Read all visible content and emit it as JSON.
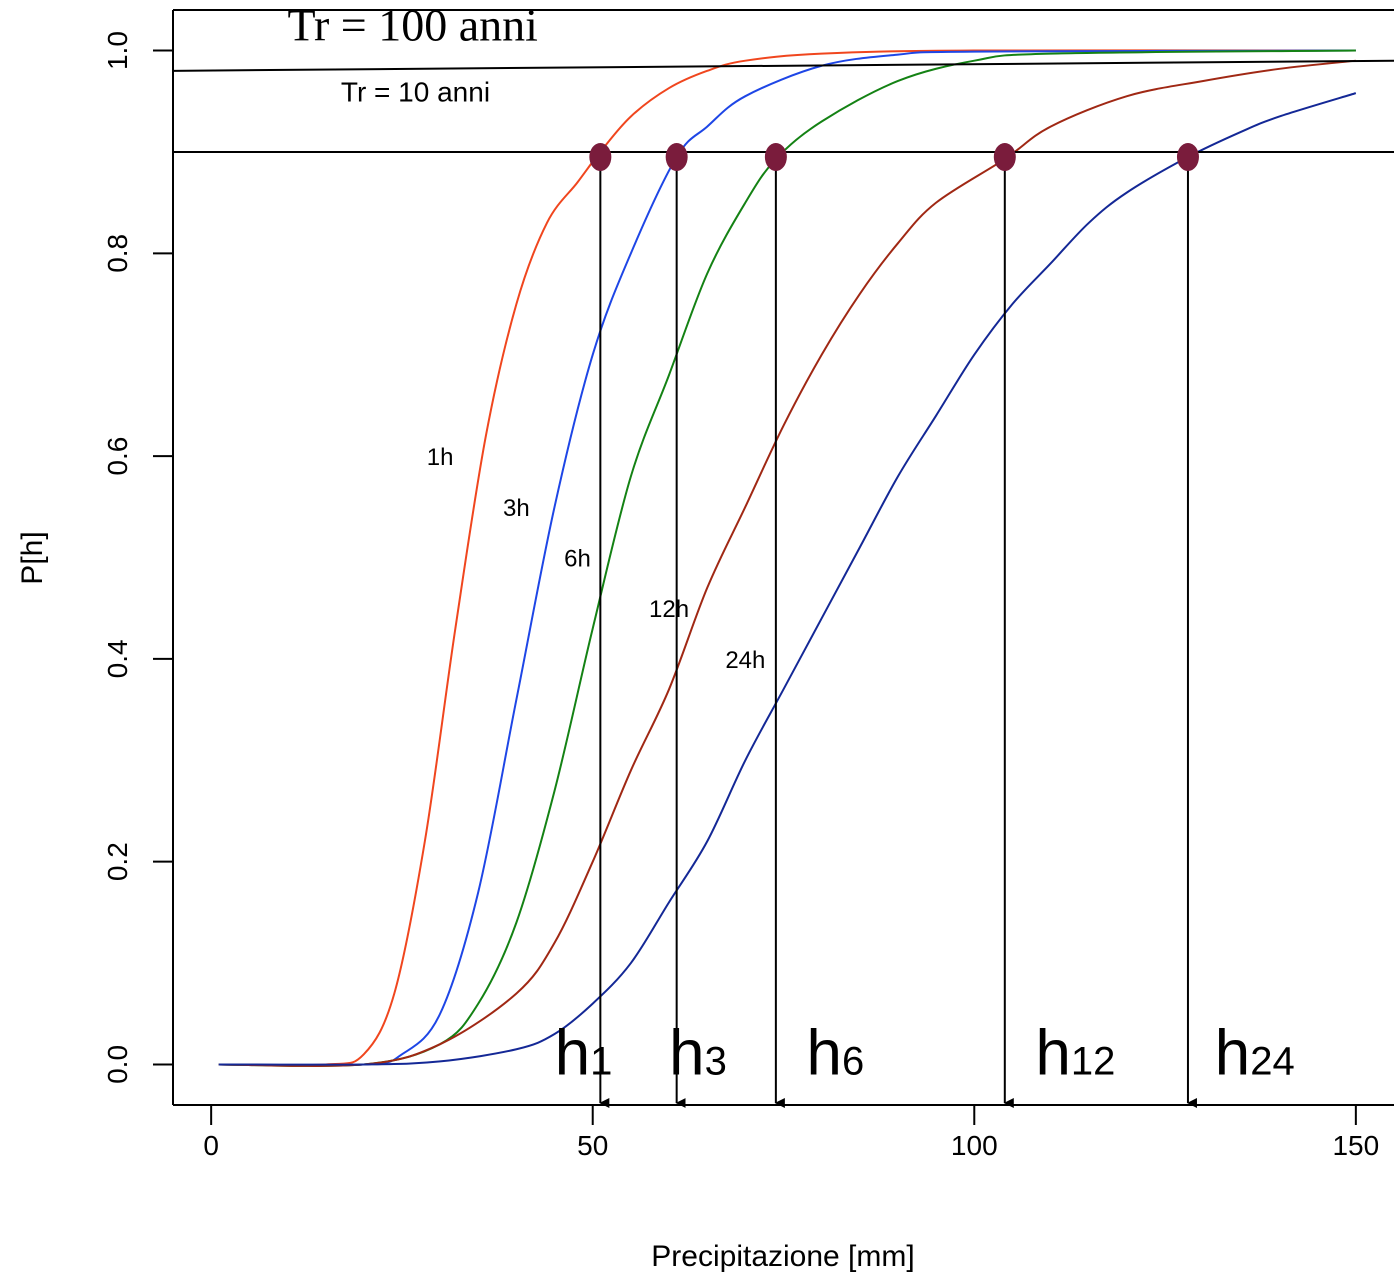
{
  "chart_data": {
    "type": "line",
    "xlabel": "Precipitazione [mm]",
    "ylabel": "P[h]",
    "xlim": [
      -5,
      155
    ],
    "ylim": [
      -0.04,
      1.04
    ],
    "x_ticks": [
      0,
      50,
      100,
      150
    ],
    "x_tick_labels": [
      "0",
      "50",
      "100",
      "150"
    ],
    "y_ticks": [
      0.0,
      0.2,
      0.4,
      0.6,
      0.8,
      1.0
    ],
    "y_tick_labels": [
      "0.0",
      "0.2",
      "0.4",
      "0.6",
      "0.8",
      "1.0"
    ],
    "grid": false,
    "legend": "none",
    "series": [
      {
        "name": "1h",
        "color": "#f0461e",
        "label": "1h",
        "label_at": [
          30,
          0.6
        ],
        "points": [
          [
            1,
            0.0
          ],
          [
            15,
            0.0
          ],
          [
            20,
            0.01
          ],
          [
            24,
            0.07
          ],
          [
            28,
            0.22
          ],
          [
            32,
            0.43
          ],
          [
            36,
            0.62
          ],
          [
            40,
            0.75
          ],
          [
            44,
            0.83
          ],
          [
            48,
            0.87
          ],
          [
            51,
            0.9
          ],
          [
            55,
            0.935
          ],
          [
            60,
            0.963
          ],
          [
            65,
            0.98
          ],
          [
            70,
            0.99
          ],
          [
            80,
            0.997
          ],
          [
            100,
            1.0
          ],
          [
            150,
            1.0
          ]
        ]
      },
      {
        "name": "3h",
        "color": "#1e46e6",
        "label": "3h",
        "label_at": [
          40,
          0.55
        ],
        "points": [
          [
            1,
            0.0
          ],
          [
            20,
            0.0
          ],
          [
            25,
            0.01
          ],
          [
            30,
            0.05
          ],
          [
            35,
            0.17
          ],
          [
            40,
            0.36
          ],
          [
            45,
            0.55
          ],
          [
            50,
            0.7
          ],
          [
            55,
            0.8
          ],
          [
            61,
            0.895
          ],
          [
            65,
            0.925
          ],
          [
            70,
            0.955
          ],
          [
            80,
            0.985
          ],
          [
            90,
            0.996
          ],
          [
            100,
            0.999
          ],
          [
            150,
            1.0
          ]
        ]
      },
      {
        "name": "6h",
        "color": "#148214",
        "label": "6h",
        "label_at": [
          48,
          0.5
        ],
        "points": [
          [
            1,
            0.0
          ],
          [
            20,
            0.0
          ],
          [
            30,
            0.02
          ],
          [
            35,
            0.06
          ],
          [
            40,
            0.14
          ],
          [
            45,
            0.27
          ],
          [
            50,
            0.43
          ],
          [
            55,
            0.58
          ],
          [
            60,
            0.68
          ],
          [
            65,
            0.78
          ],
          [
            70,
            0.85
          ],
          [
            74,
            0.893
          ],
          [
            80,
            0.93
          ],
          [
            90,
            0.97
          ],
          [
            100,
            0.99
          ],
          [
            110,
            0.997
          ],
          [
            150,
            1.0
          ]
        ]
      },
      {
        "name": "12h",
        "color": "#a02814",
        "label": "12h",
        "label_at": [
          60,
          0.45
        ],
        "points": [
          [
            1,
            0.0
          ],
          [
            20,
            0.0
          ],
          [
            30,
            0.02
          ],
          [
            40,
            0.07
          ],
          [
            45,
            0.12
          ],
          [
            50,
            0.2
          ],
          [
            55,
            0.29
          ],
          [
            60,
            0.37
          ],
          [
            65,
            0.47
          ],
          [
            70,
            0.55
          ],
          [
            75,
            0.63
          ],
          [
            80,
            0.7
          ],
          [
            85,
            0.76
          ],
          [
            90,
            0.81
          ],
          [
            95,
            0.85
          ],
          [
            104,
            0.893
          ],
          [
            110,
            0.925
          ],
          [
            120,
            0.955
          ],
          [
            130,
            0.97
          ],
          [
            140,
            0.982
          ],
          [
            150,
            0.99
          ]
        ]
      },
      {
        "name": "24h",
        "color": "#142896",
        "label": "24h",
        "label_at": [
          70,
          0.4
        ],
        "points": [
          [
            1,
            0.0
          ],
          [
            20,
            0.0
          ],
          [
            30,
            0.003
          ],
          [
            40,
            0.015
          ],
          [
            45,
            0.03
          ],
          [
            50,
            0.06
          ],
          [
            55,
            0.1
          ],
          [
            60,
            0.16
          ],
          [
            65,
            0.22
          ],
          [
            70,
            0.3
          ],
          [
            75,
            0.37
          ],
          [
            80,
            0.44
          ],
          [
            85,
            0.51
          ],
          [
            90,
            0.58
          ],
          [
            95,
            0.64
          ],
          [
            100,
            0.7
          ],
          [
            105,
            0.75
          ],
          [
            110,
            0.79
          ],
          [
            115,
            0.83
          ],
          [
            120,
            0.86
          ],
          [
            128,
            0.895
          ],
          [
            135,
            0.92
          ],
          [
            140,
            0.935
          ],
          [
            150,
            0.958
          ]
        ]
      }
    ],
    "reference_lines": [
      {
        "name": "Tr = 100 anni",
        "label": "Tr = 100 anni",
        "label_at": [
          10,
          1.01
        ],
        "x": [
          -5,
          155
        ],
        "y": [
          0.98,
          0.99
        ]
      },
      {
        "name": "Tr = 10 anni",
        "label": "Tr = 10 anni",
        "label_at": [
          17,
          0.95
        ],
        "x": [
          -5,
          155
        ],
        "y": [
          0.9,
          0.9
        ]
      }
    ],
    "markers": [
      {
        "x": 51,
        "y": 0.895,
        "color": "#7a1c3c"
      },
      {
        "x": 61,
        "y": 0.895,
        "color": "#7a1c3c"
      },
      {
        "x": 74,
        "y": 0.895,
        "color": "#7a1c3c"
      },
      {
        "x": 104,
        "y": 0.895,
        "color": "#7a1c3c"
      },
      {
        "x": 128,
        "y": 0.895,
        "color": "#7a1c3c"
      }
    ],
    "drop_arrows": [
      {
        "x": 51,
        "from_y": 0.895,
        "label": "h",
        "sub": "1",
        "label_at": [
          45,
          -0.01
        ]
      },
      {
        "x": 61,
        "from_y": 0.895,
        "label": "h",
        "sub": "3",
        "label_at": [
          60,
          -0.01
        ]
      },
      {
        "x": 74,
        "from_y": 0.895,
        "label": "h",
        "sub": "6",
        "label_at": [
          78,
          -0.01
        ]
      },
      {
        "x": 104,
        "from_y": 0.895,
        "label": "h",
        "sub": "12",
        "label_at": [
          108,
          -0.01
        ]
      },
      {
        "x": 128,
        "from_y": 0.895,
        "label": "h",
        "sub": "24",
        "label_at": [
          131.5,
          -0.01
        ]
      }
    ]
  }
}
